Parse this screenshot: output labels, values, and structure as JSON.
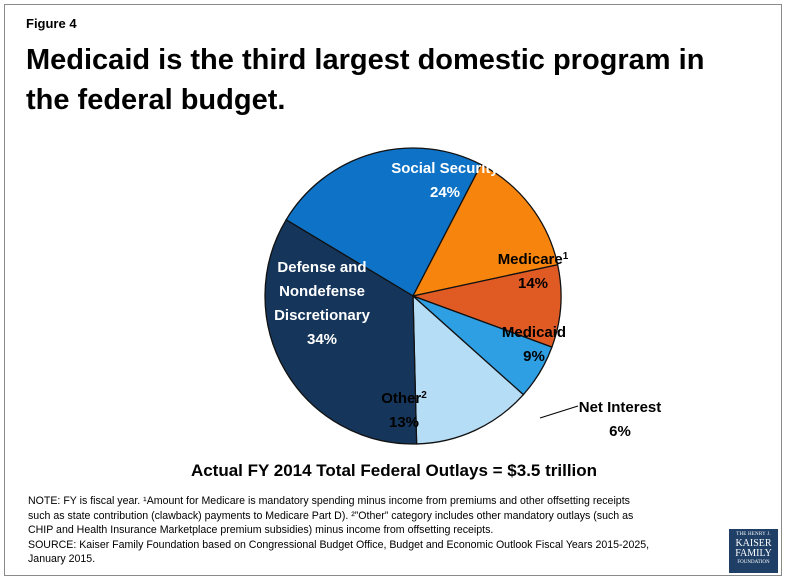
{
  "figure_label": "Figure 4",
  "title": "Medicaid is the third largest domestic program in the federal budget.",
  "chart_data": {
    "type": "pie",
    "title": "Medicaid is the third largest domestic program in the federal budget.",
    "subtitle": "Actual FY 2014 Total Federal Outlays = $3.5 trillion",
    "slices": [
      {
        "label": "Social Security",
        "superscript": "",
        "value": 24,
        "value_label": "24%",
        "color": "#0e73c6"
      },
      {
        "label": "Medicare",
        "superscript": "1",
        "value": 14,
        "value_label": "14%",
        "color": "#f7850d"
      },
      {
        "label": "Medicaid",
        "superscript": "",
        "value": 9,
        "value_label": "9%",
        "color": "#e05a23"
      },
      {
        "label": "Net Interest",
        "superscript": "",
        "value": 6,
        "value_label": "6%",
        "color": "#2f9fe3"
      },
      {
        "label": "Other",
        "superscript": "2",
        "value": 13,
        "value_label": "13%",
        "color": "#b6ddf6"
      },
      {
        "label": "Defense and Nondefense Discretionary",
        "label_lines": [
          "Defense and",
          "Nondefense",
          "Discretionary"
        ],
        "superscript": "",
        "value": 34,
        "value_label": "34%",
        "color": "#15365a"
      }
    ]
  },
  "notes": {
    "note_line1": "NOTE: FY is fiscal year. ¹Amount for Medicare is mandatory spending minus income from premiums and other offsetting receipts",
    "note_line2": "such as state contribution (clawback) payments to Medicare Part D). ²”Other” category includes other mandatory outlays (such as",
    "note_line3": "CHIP and Health Insurance Marketplace premium subsidies) minus income from offsetting receipts.",
    "source_line1": "SOURCE:  Kaiser Family Foundation based on Congressional Budget Office, Budget and Economic Outlook Fiscal Years 2015-2025,",
    "source_line2": "January 2015."
  },
  "logo": {
    "line1": "THE HENRY J.",
    "line2": "KAISER",
    "line3": "FAMILY",
    "line4": "FOUNDATION"
  }
}
